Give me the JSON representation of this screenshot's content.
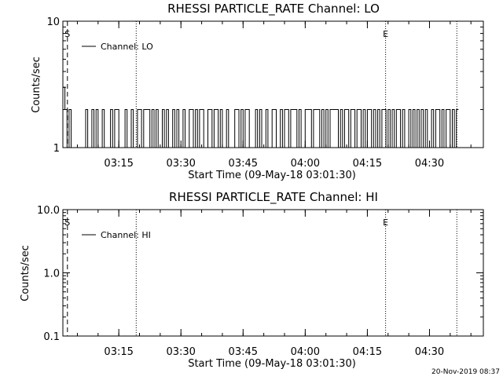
{
  "chart_data": [
    {
      "type": "line",
      "title": "RHESSI PARTICLE_RATE Channel: LO",
      "xlabel": "Start Time (09-May-18 03:01:30)",
      "ylabel": "Counts/sec",
      "yscale": "log",
      "ylim": [
        1,
        10
      ],
      "y_tick_labels": [
        "1",
        "10"
      ],
      "x_tick_labels": [
        "03:15",
        "03:30",
        "03:45",
        "04:00",
        "04:15",
        "04:30"
      ],
      "x_tick_minutes_after_start": [
        13.5,
        28.5,
        43.5,
        58.5,
        73.5,
        88.5
      ],
      "xlim_minutes_after_start": [
        0,
        101.5
      ],
      "vertical_markers": [
        {
          "label": "S",
          "style": "dashed",
          "minute": 1.1
        },
        {
          "label": "",
          "style": "dotted",
          "minute": 17.7
        },
        {
          "label": "E",
          "style": "dotted",
          "minute": 77.9
        },
        {
          "label": "",
          "style": "dotted",
          "minute": 95.1
        }
      ],
      "legend": {
        "position": "top-left",
        "entries": [
          "Channel: LO"
        ]
      },
      "series": [
        {
          "name": "Channel: LO",
          "levels": [
            1,
            2
          ],
          "x_minutes": [
            0,
            0.5,
            1.0,
            1.5,
            2.0,
            2.5,
            3.0,
            3.5,
            4.0,
            4.5,
            5.0,
            5.5,
            6.0,
            6.5,
            7.0,
            7.5,
            8.0,
            8.5,
            9.0,
            9.5,
            10.0,
            10.5,
            11.0,
            11.5,
            12.0,
            12.5,
            13.0,
            13.5,
            14.0,
            14.5,
            15.0,
            15.5,
            16.0,
            16.5,
            17.0,
            17.5,
            18.0,
            18.5,
            19.0,
            19.5,
            20.0,
            20.5,
            21.0,
            21.5,
            22.0,
            22.5,
            23.0,
            23.5,
            24.0,
            24.5,
            25.0,
            25.5,
            26.0,
            26.5,
            27.0,
            27.5,
            28.0,
            28.5,
            29.0,
            29.5,
            30.0,
            30.5,
            31.0,
            31.5,
            32.0,
            32.5,
            33.0,
            33.5,
            34.0,
            34.5,
            35.0,
            35.5,
            36.0,
            36.5,
            37.0,
            37.5,
            38.0,
            38.5,
            39.0,
            39.5,
            40.0,
            40.5,
            41.0,
            41.5,
            42.0,
            42.5,
            43.0,
            43.5,
            44.0,
            44.5,
            45.0,
            45.5,
            46.0,
            46.5,
            47.0,
            47.5,
            48.0,
            48.5,
            49.0,
            49.5,
            50.0,
            50.5,
            51.0,
            51.5,
            52.0,
            52.5,
            53.0,
            53.5,
            54.0,
            54.5,
            55.0,
            55.5,
            56.0,
            56.5,
            57.0,
            57.5,
            58.0,
            58.5,
            59.0,
            59.5,
            60.0,
            60.5,
            61.0,
            61.5,
            62.0,
            62.5,
            63.0,
            63.5,
            64.0,
            64.5,
            65.0,
            65.5,
            66.0,
            66.5,
            67.0,
            67.5,
            68.0,
            68.5,
            69.0,
            69.5,
            70.0,
            70.5,
            71.0,
            71.5,
            72.0,
            72.5,
            73.0,
            73.5,
            74.0,
            74.5,
            75.0,
            75.5,
            76.0,
            76.5,
            77.0,
            77.5,
            78.0,
            78.5,
            79.0,
            79.5,
            80.0,
            80.5,
            81.0,
            81.5,
            82.0,
            82.5,
            83.0,
            83.5,
            84.0,
            84.5,
            85.0,
            85.5,
            86.0,
            86.5,
            87.0,
            87.5,
            88.0,
            88.5,
            89.0,
            89.5,
            90.0,
            90.5,
            91.0,
            91.5,
            92.0,
            92.5,
            93.0,
            93.5,
            94.0,
            94.5,
            95.0
          ],
          "values": [
            3,
            2,
            1,
            2,
            1,
            1,
            1,
            1,
            1,
            1,
            1,
            2,
            1,
            1,
            2,
            1,
            2,
            1,
            1,
            2,
            1,
            1,
            1,
            2,
            1,
            2,
            2,
            1,
            1,
            1,
            2,
            1,
            1,
            2,
            1,
            1,
            2,
            2,
            1,
            2,
            2,
            2,
            1,
            2,
            1,
            2,
            1,
            1,
            2,
            1,
            2,
            1,
            1,
            2,
            1,
            2,
            1,
            1,
            2,
            1,
            1,
            2,
            2,
            1,
            2,
            1,
            2,
            2,
            1,
            1,
            2,
            2,
            1,
            2,
            2,
            1,
            2,
            1,
            1,
            2,
            1,
            1,
            1,
            2,
            2,
            1,
            2,
            1,
            2,
            2,
            1,
            1,
            1,
            2,
            1,
            2,
            1,
            1,
            2,
            1,
            1,
            2,
            2,
            1,
            1,
            2,
            1,
            2,
            2,
            1,
            2,
            2,
            2,
            1,
            2,
            1,
            1,
            2,
            2,
            2,
            1,
            2,
            2,
            2,
            1,
            2,
            1,
            2,
            1,
            2,
            2,
            2,
            2,
            1,
            2,
            1,
            2,
            2,
            1,
            2,
            2,
            1,
            2,
            2,
            1,
            2,
            1,
            2,
            2,
            1,
            2,
            1,
            2,
            1,
            2,
            2,
            1,
            2,
            1,
            2,
            1,
            2,
            2,
            1,
            2,
            1,
            1,
            2,
            1,
            2,
            1,
            2,
            1,
            2,
            1,
            2,
            1,
            1,
            2,
            1,
            2,
            2,
            1,
            2,
            1,
            2,
            2,
            1,
            2,
            1,
            2
          ]
        }
      ]
    },
    {
      "type": "line",
      "title": "RHESSI PARTICLE_RATE Channel: HI",
      "xlabel": "Start Time (09-May-18 03:01:30)",
      "ylabel": "Counts/sec",
      "yscale": "log",
      "ylim": [
        0.1,
        10
      ],
      "y_tick_labels": [
        "0.1",
        "1.0",
        "10.0"
      ],
      "x_tick_labels": [
        "03:15",
        "03:30",
        "03:45",
        "04:00",
        "04:15",
        "04:30"
      ],
      "x_tick_minutes_after_start": [
        13.5,
        28.5,
        43.5,
        58.5,
        73.5,
        88.5
      ],
      "xlim_minutes_after_start": [
        0,
        101.5
      ],
      "vertical_markers": [
        {
          "label": "S",
          "style": "dashed",
          "minute": 1.1
        },
        {
          "label": "",
          "style": "dotted",
          "minute": 17.7
        },
        {
          "label": "E",
          "style": "dotted",
          "minute": 77.9
        },
        {
          "label": "",
          "style": "dotted",
          "minute": 95.1
        }
      ],
      "legend": {
        "position": "top-left",
        "entries": [
          "Channel: HI"
        ]
      },
      "series": [
        {
          "name": "Channel: HI",
          "x_minutes": [],
          "values": []
        }
      ]
    }
  ],
  "footer": {
    "timestamp": "20-Nov-2019 08:37"
  }
}
